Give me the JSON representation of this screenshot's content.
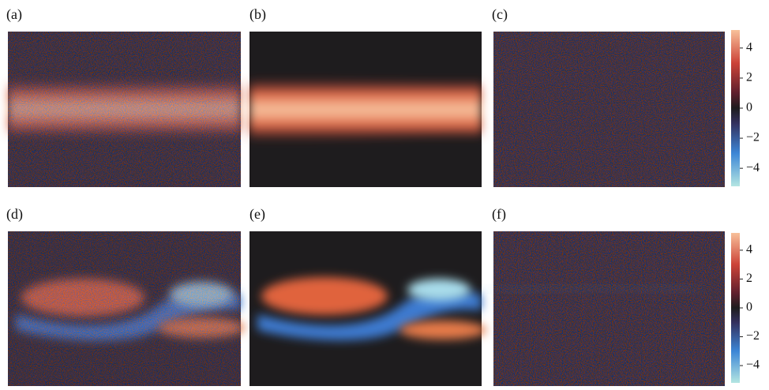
{
  "figure": {
    "panels": [
      {
        "label": "(a)"
      },
      {
        "label": "(b)"
      },
      {
        "label": "(c)"
      },
      {
        "label": "(d)"
      },
      {
        "label": "(e)"
      },
      {
        "label": "(f)"
      }
    ],
    "colorbars": [
      {
        "clim": [
          -5.2,
          5.2
        ],
        "ticks": [
          {
            "value": 4,
            "label": "4"
          },
          {
            "value": 2,
            "label": "2"
          },
          {
            "value": 0,
            "label": "0"
          },
          {
            "value": -2,
            "label": "−2"
          },
          {
            "value": -4,
            "label": "−4"
          }
        ],
        "colormap": [
          {
            "value": -5.2,
            "color": "#b4e6e2"
          },
          {
            "value": -3,
            "color": "#3c86d6"
          },
          {
            "value": -1,
            "color": "#33305e"
          },
          {
            "value": 0,
            "color": "#1e1c1e"
          },
          {
            "value": 1,
            "color": "#5e1f2e"
          },
          {
            "value": 3,
            "color": "#cc4338"
          },
          {
            "value": 5.2,
            "color": "#f8c09a"
          }
        ]
      },
      {
        "clim": [
          -5.2,
          5.2
        ],
        "ticks": [
          {
            "value": 4,
            "label": "4"
          },
          {
            "value": 2,
            "label": "2"
          },
          {
            "value": 0,
            "label": "0"
          },
          {
            "value": -2,
            "label": "−2"
          },
          {
            "value": -4,
            "label": "−4"
          }
        ],
        "colormap": [
          {
            "value": -5.2,
            "color": "#b4e6e2"
          },
          {
            "value": -3,
            "color": "#3c86d6"
          },
          {
            "value": -1,
            "color": "#33305e"
          },
          {
            "value": 0,
            "color": "#1e1c1e"
          },
          {
            "value": 1,
            "color": "#5e1f2e"
          },
          {
            "value": 3,
            "color": "#cc4338"
          },
          {
            "value": 5.2,
            "color": "#f8c09a"
          }
        ]
      }
    ]
  }
}
